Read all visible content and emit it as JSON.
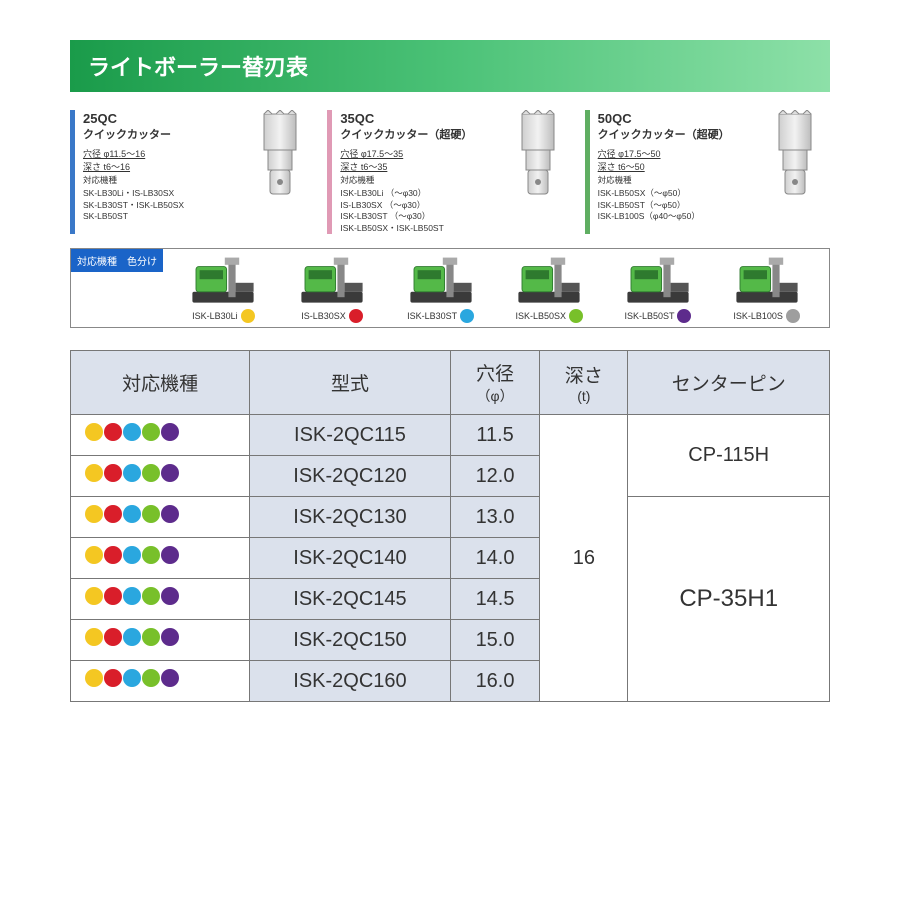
{
  "title": "ライトボーラー替刃表",
  "colors": {
    "yellow": "#f4c722",
    "red": "#d91e2a",
    "cyan": "#2aa7df",
    "green": "#78c02a",
    "purple": "#5d2b8c",
    "grey": "#9e9e9e",
    "card_blue": "#3a78c8",
    "card_pink": "#e09ab5",
    "card_green": "#5fae62"
  },
  "cutters": [
    {
      "border": "card_blue",
      "code": "25QC",
      "name": "クイックカッター",
      "dia": "穴径 φ11.5～16",
      "depth": "深さ t6～16",
      "compat_label": "対応機種",
      "compat": "SK-LB30Li・IS-LB30SX\nSK-LB30ST・ISK-LB50SX\nSK-LB50ST"
    },
    {
      "border": "card_pink",
      "code": "35QC",
      "name": "クイックカッター（超硬）",
      "dia": "穴径 φ17.5～35",
      "depth": "深さ t6～35",
      "compat_label": "対応機種",
      "compat": "ISK-LB30Li （～φ30）\nIS-LB30SX （～φ30）\nISK-LB30ST （～φ30）\nISK-LB50SX・ISK-LB50ST"
    },
    {
      "border": "card_green",
      "code": "50QC",
      "name": "クイックカッター（超硬）",
      "dia": "穴径 φ17.5～50",
      "depth": "深さ t6～50",
      "compat_label": "対応機種",
      "compat": "ISK-LB50SX（～φ50）\nISK-LB50ST（～φ50）\nISK-LB100S（φ40～φ50）"
    }
  ],
  "legend_label": "対応機種　色分け",
  "machines": [
    {
      "label": "ISK-LB30Li",
      "color": "yellow"
    },
    {
      "label": "IS-LB30SX",
      "color": "red"
    },
    {
      "label": "ISK-LB30ST",
      "color": "cyan"
    },
    {
      "label": "ISK-LB50SX",
      "color": "green"
    },
    {
      "label": "ISK-LB50ST",
      "color": "purple"
    },
    {
      "label": "ISK-LB100S",
      "color": "grey"
    }
  ],
  "table": {
    "headers": {
      "machine": "対応機種",
      "model": "型式",
      "dia": "穴径",
      "dia_sub": "（φ）",
      "depth": "深さ",
      "depth_sub": "(t)",
      "pin": "センターピン"
    },
    "depth_value": "16",
    "rows": [
      {
        "dots": [
          "yellow",
          "red",
          "cyan",
          "green",
          "purple"
        ],
        "model": "ISK-2QC115",
        "dia": "11.5"
      },
      {
        "dots": [
          "yellow",
          "red",
          "cyan",
          "green",
          "purple"
        ],
        "model": "ISK-2QC120",
        "dia": "12.0"
      },
      {
        "dots": [
          "yellow",
          "red",
          "cyan",
          "green",
          "purple"
        ],
        "model": "ISK-2QC130",
        "dia": "13.0"
      },
      {
        "dots": [
          "yellow",
          "red",
          "cyan",
          "green",
          "purple"
        ],
        "model": "ISK-2QC140",
        "dia": "14.0"
      },
      {
        "dots": [
          "yellow",
          "red",
          "cyan",
          "green",
          "purple"
        ],
        "model": "ISK-2QC145",
        "dia": "14.5"
      },
      {
        "dots": [
          "yellow",
          "red",
          "cyan",
          "green",
          "purple"
        ],
        "model": "ISK-2QC150",
        "dia": "15.0"
      },
      {
        "dots": [
          "yellow",
          "red",
          "cyan",
          "green",
          "purple"
        ],
        "model": "ISK-2QC160",
        "dia": "16.0"
      }
    ],
    "pins": [
      {
        "label": "CP-115H",
        "rowspan": 2
      },
      {
        "label": "CP-35H1",
        "rowspan": 5
      }
    ]
  }
}
